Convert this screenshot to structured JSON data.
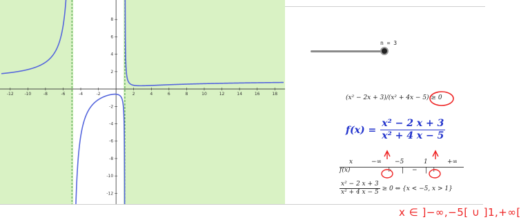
{
  "slider": {
    "label": "n = 3",
    "value": 3
  },
  "inequality": {
    "text": "(x² − 2x + 3)/(x² + 4x − 5) ≥ 0"
  },
  "function": {
    "name": "f(x) =",
    "numerator": "x² − 2 x + 3",
    "denominator": "x² + 4 x − 5"
  },
  "sign_table": {
    "header": [
      "x",
      "−∞",
      "−5",
      "1",
      "+∞"
    ],
    "row_label": "f(x)",
    "signs": [
      "+",
      "|",
      "−",
      "|",
      "+"
    ]
  },
  "result": {
    "numerator": "x² − 2 x + 3",
    "denominator": "x² + 4 x − 5",
    "text": "≥ 0 ⇔ {x < −5, x > 1}"
  },
  "handwritten": "x ∈ ]−∞,−5[ ∪ ]1,+∞[",
  "colors": {
    "curve": "#5566dd",
    "shade": "#d9f2c4",
    "asymptote": "#3a9a3a",
    "annotation": "#ee2222",
    "formula": "#2233cc"
  },
  "chart_data": {
    "type": "line",
    "title": "",
    "xlabel": "",
    "ylabel": "",
    "xlim": [
      -13,
      19
    ],
    "ylim": [
      -13,
      10
    ],
    "x_ticks": [
      -12,
      -10,
      -8,
      -6,
      -4,
      -2,
      2,
      4,
      6,
      8,
      10,
      12,
      14,
      16,
      18
    ],
    "y_ticks": [
      -12,
      -10,
      -8,
      -6,
      -4,
      -2,
      2,
      4,
      6,
      8
    ],
    "asymptotes_x": [
      -5,
      1
    ],
    "shaded_intervals": [
      [
        -13,
        -5
      ],
      [
        1,
        19
      ]
    ],
    "series": [
      {
        "function": "(x^2-2x+3)/(x^2+4x-5)"
      }
    ]
  }
}
